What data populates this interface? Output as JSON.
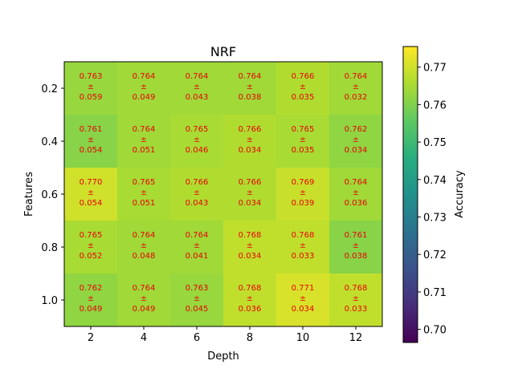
{
  "chart_data": {
    "type": "heatmap",
    "title": "NRF",
    "xlabel": "Depth",
    "ylabel": "Features",
    "x_categories": [
      "2",
      "4",
      "6",
      "8",
      "10",
      "12"
    ],
    "y_categories": [
      "0.2",
      "0.4",
      "0.6",
      "0.8",
      "1.0"
    ],
    "values": [
      [
        0.763,
        0.764,
        0.764,
        0.764,
        0.766,
        0.764
      ],
      [
        0.761,
        0.764,
        0.765,
        0.766,
        0.765,
        0.762
      ],
      [
        0.77,
        0.765,
        0.766,
        0.766,
        0.769,
        0.764
      ],
      [
        0.765,
        0.764,
        0.764,
        0.768,
        0.768,
        0.761
      ],
      [
        0.762,
        0.764,
        0.763,
        0.768,
        0.771,
        0.768
      ]
    ],
    "std": [
      [
        0.059,
        0.049,
        0.043,
        0.038,
        0.035,
        0.032
      ],
      [
        0.054,
        0.051,
        0.046,
        0.034,
        0.035,
        0.034
      ],
      [
        0.054,
        0.051,
        0.043,
        0.034,
        0.039,
        0.036
      ],
      [
        0.052,
        0.048,
        0.041,
        0.034,
        0.033,
        0.038
      ],
      [
        0.049,
        0.049,
        0.045,
        0.036,
        0.034,
        0.033
      ]
    ],
    "cell_text_sep": "±",
    "cell_text_color": "#e8000b",
    "colormap": "viridis",
    "colorbar": {
      "label": "Accuracy",
      "range": [
        0.6965,
        0.7755
      ],
      "ticks": [
        "0.70",
        "0.71",
        "0.72",
        "0.73",
        "0.74",
        "0.75",
        "0.76",
        "0.77"
      ]
    }
  }
}
